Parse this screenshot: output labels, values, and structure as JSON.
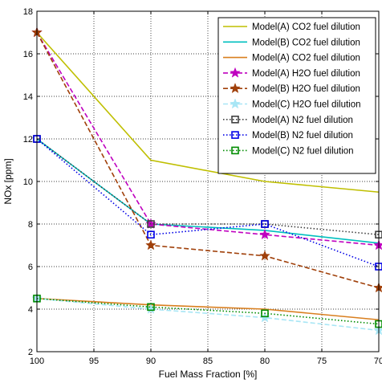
{
  "chart_data": {
    "type": "line",
    "title": "",
    "xlabel": "Fuel Mass Fraction [%]",
    "ylabel": "NOx [ppm]",
    "xlim": [
      100,
      70
    ],
    "ylim": [
      2,
      18
    ],
    "x_reversed": true,
    "grid": true,
    "grid_style": "dotted",
    "legend_position": "top-right",
    "xticks": [
      100,
      95,
      90,
      85,
      80,
      75,
      70
    ],
    "yticks": [
      2,
      4,
      6,
      8,
      10,
      12,
      14,
      16,
      18
    ],
    "x": [
      100,
      90,
      80,
      70
    ],
    "series": [
      {
        "name": "Model(A) CO2 fuel dilution",
        "values": [
          17,
          11,
          10,
          9.5
        ],
        "color": "#BFBF00",
        "dash": "solid",
        "marker": "none"
      },
      {
        "name": "Model(B) CO2 fuel dilution",
        "values": [
          12,
          8,
          7.7,
          7.1
        ],
        "color": "#00BFBF",
        "dash": "solid",
        "marker": "none"
      },
      {
        "name": "Model(A) CO2 fuel dilution",
        "values": [
          4.5,
          4.2,
          4.0,
          3.5
        ],
        "color": "#D97F1F",
        "dash": "solid",
        "marker": "none"
      },
      {
        "name": "Model(A) H2O fuel dilution",
        "values": [
          17,
          8,
          7.5,
          7
        ],
        "color": "#BF00BF",
        "dash": "dashed",
        "marker": "star"
      },
      {
        "name": "Model(B) H2O fuel dilution",
        "values": [
          17,
          7,
          6.5,
          5
        ],
        "color": "#A0400A",
        "dash": "dashed",
        "marker": "star"
      },
      {
        "name": "Model(C) H2O fuel dilution",
        "values": [
          4.5,
          4.0,
          3.6,
          3.0
        ],
        "color": "#A8E6F5",
        "dash": "dashed",
        "marker": "star"
      },
      {
        "name": "Model(A) N2 fuel dilution",
        "values": [
          12,
          8,
          8,
          7.5
        ],
        "color": "#404040",
        "dash": "dotted",
        "marker": "square"
      },
      {
        "name": "Model(B) N2 fuel dilution",
        "values": [
          12,
          7.5,
          8,
          6
        ],
        "color": "#0000E6",
        "dash": "dotted",
        "marker": "square"
      },
      {
        "name": "Model(C) N2 fuel dilution",
        "values": [
          4.5,
          4.1,
          3.8,
          3.3
        ],
        "color": "#008C00",
        "dash": "dotted",
        "marker": "square"
      }
    ]
  }
}
